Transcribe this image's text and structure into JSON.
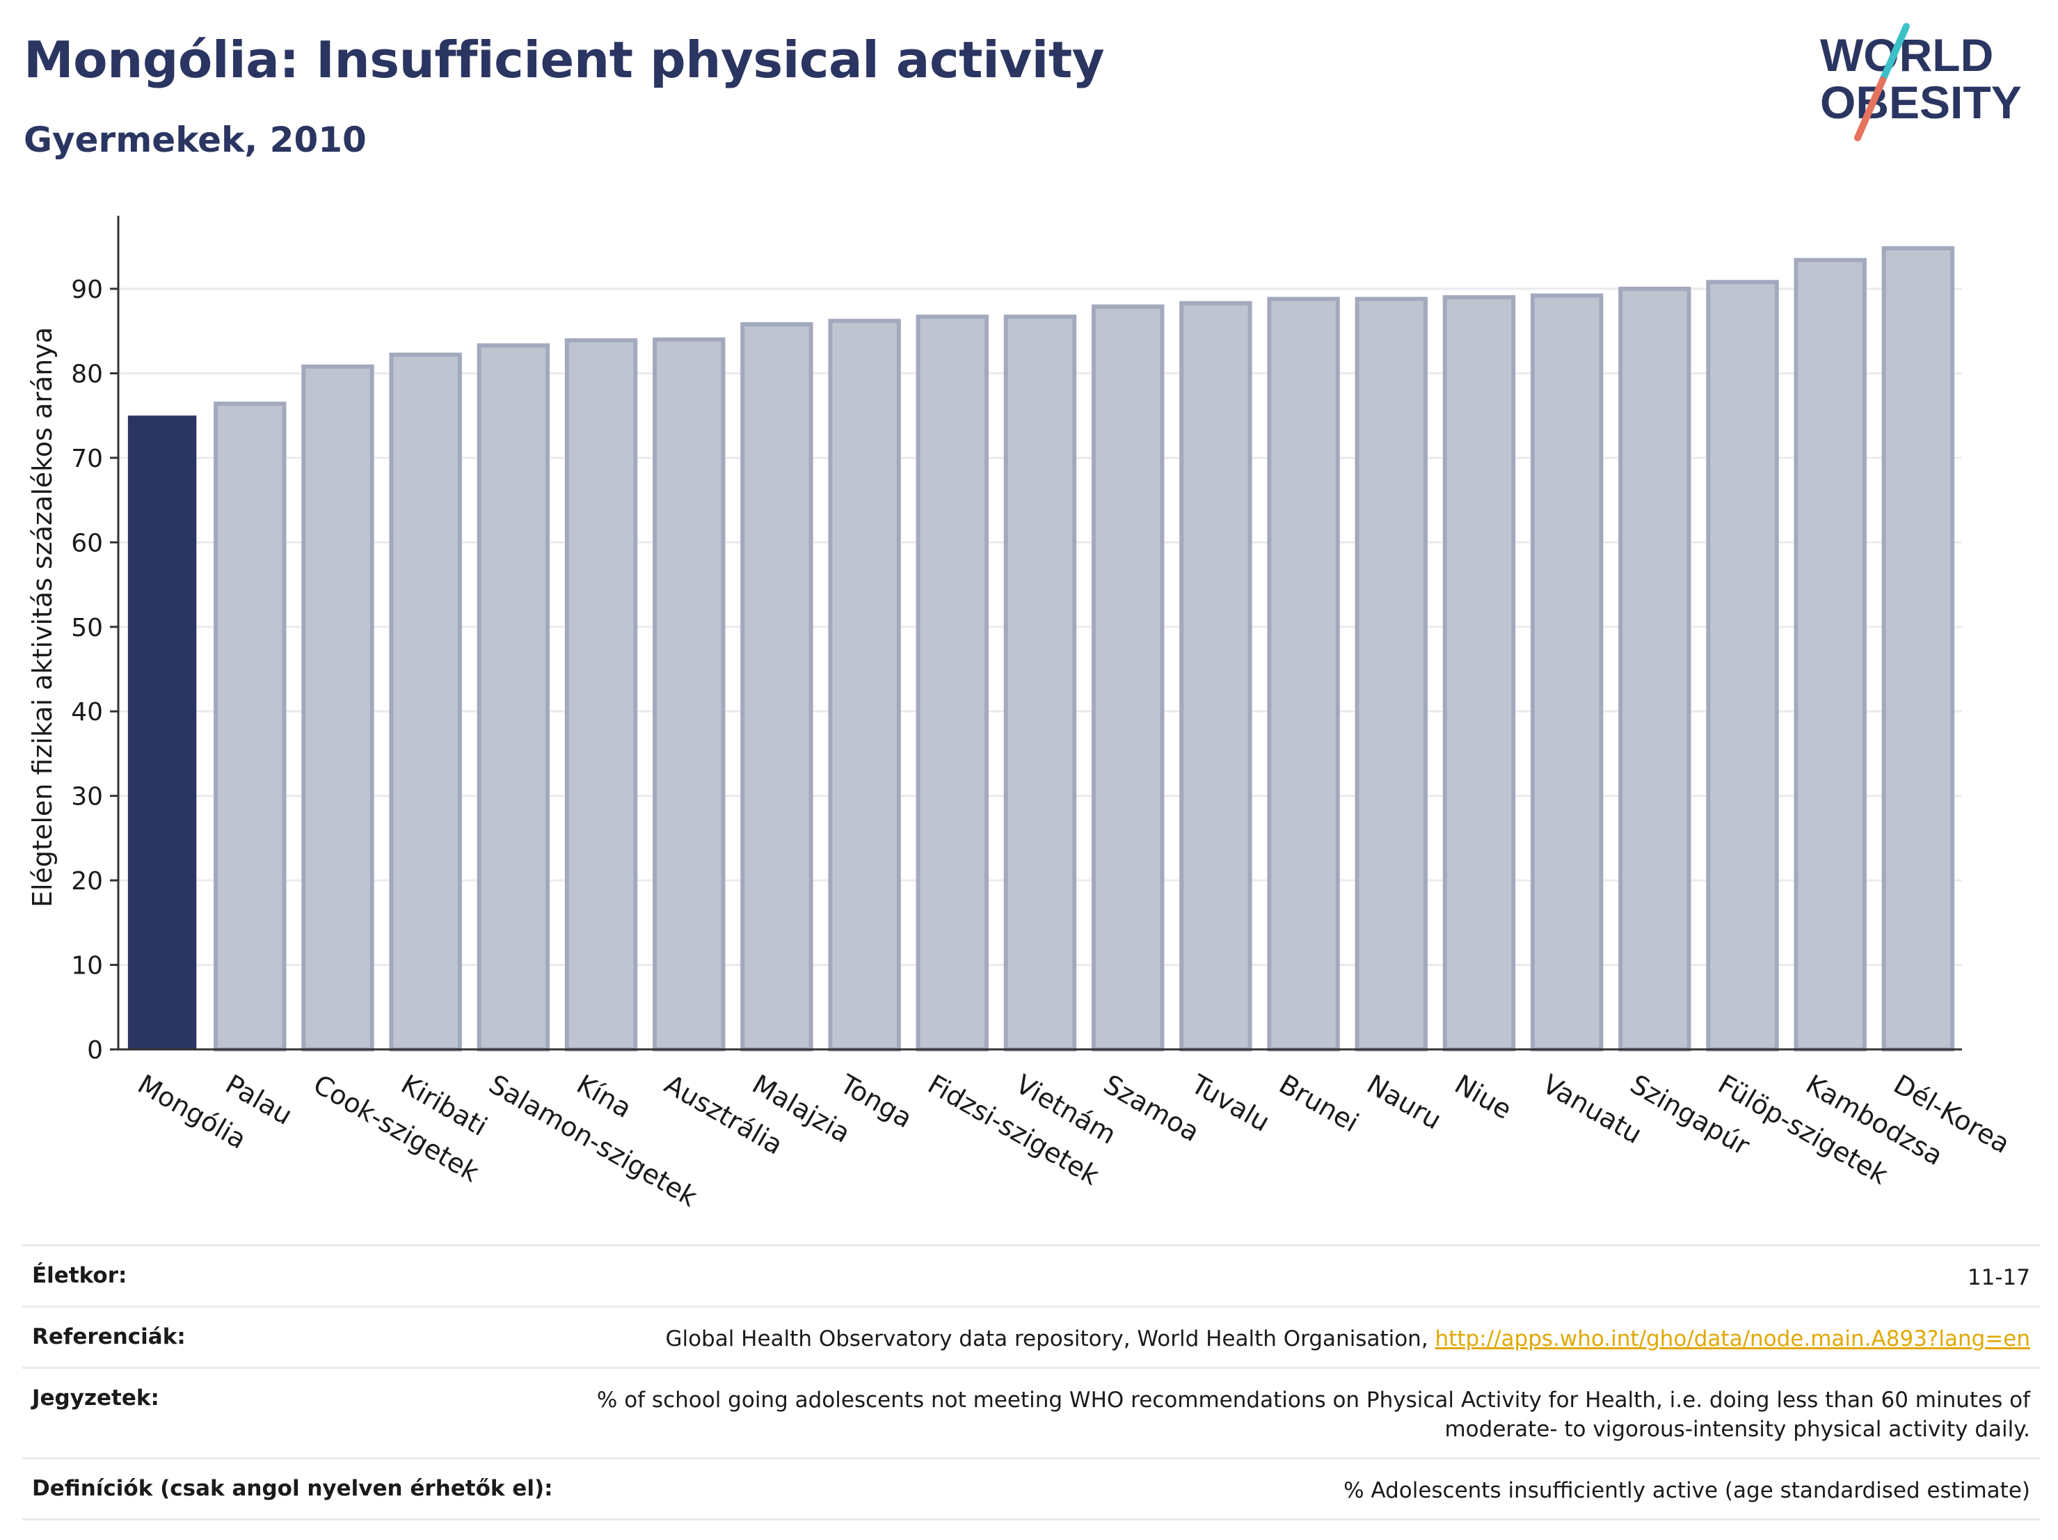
{
  "header": {
    "title": "Mongólia: Insufficient physical activity",
    "subtitle": "Gyermekek, 2010"
  },
  "logo": {
    "line1": "WORLD",
    "line2": "OBESITY",
    "accent_colors": [
      "#3cc1c9",
      "#e5735d"
    ],
    "text_color": "#2b3561"
  },
  "chart_data": {
    "type": "bar",
    "ylabel": "Elégtelen fizikai aktivitás százalékos aránya",
    "xlabel": "",
    "ylim": [
      0,
      97
    ],
    "yticks": [
      0,
      10,
      20,
      30,
      40,
      50,
      60,
      70,
      80,
      90
    ],
    "grid": true,
    "highlight_category": "Mongólia",
    "highlight_color": "#2b3561",
    "bar_color": "#c0c4d1",
    "categories": [
      "Mongólia",
      "Palau",
      "Cook-szigetek",
      "Kiribati",
      "Salamon-szigetek",
      "Kína",
      "Ausztrália",
      "Malajzia",
      "Tonga",
      "Fidzsi-szigetek",
      "Vietnám",
      "Szamoa",
      "Tuvalu",
      "Brunei",
      "Nauru",
      "Niue",
      "Vanuatu",
      "Szingapúr",
      "Fülöp-szigetek",
      "Kambodzsa",
      "Dél-Korea"
    ],
    "values": [
      75.0,
      76.4,
      80.8,
      82.2,
      83.3,
      83.9,
      84.0,
      85.8,
      86.2,
      86.7,
      86.7,
      87.9,
      88.3,
      88.8,
      88.8,
      89.0,
      89.2,
      90.0,
      90.8,
      93.4,
      94.8
    ]
  },
  "meta": {
    "age_label": "Életkor:",
    "age_value": "11-17",
    "ref_label": "Referenciák:",
    "ref_text": "Global Health Observatory data repository, World Health Organisation, ",
    "ref_link": "http://apps.who.int/gho/data/node.main.A893?lang=en",
    "notes_label": "Jegyzetek:",
    "notes_value": "% of school going adolescents not meeting WHO recommendations on Physical Activity for Health, i.e. doing less than 60 minutes of moderate- to vigorous-intensity physical activity daily.",
    "def_label": "Definíciók (csak angol nyelven érhetők el):",
    "def_value": "% Adolescents insufficiently active (age standardised estimate)"
  }
}
